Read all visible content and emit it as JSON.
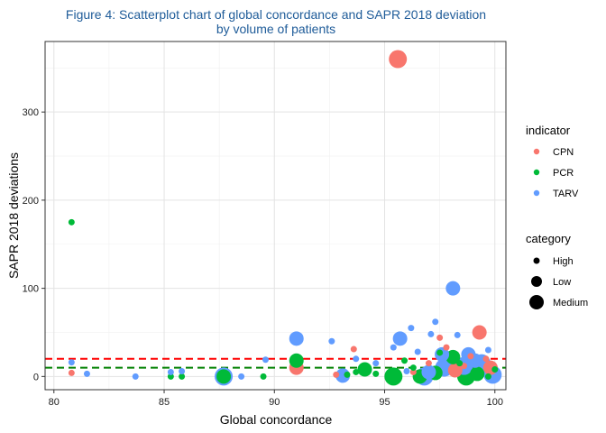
{
  "chart_data": {
    "type": "scatter",
    "title_line1": "Figure 4: Scatterplot chart of global concordance and SAPR 2018 deviation",
    "title_line2": "by volume of patients",
    "xlabel": "Global concordance",
    "ylabel": "SAPR 2018 deviations",
    "xlim": [
      79.6,
      100.5
    ],
    "ylim": [
      -15,
      380
    ],
    "x_ticks": [
      "80",
      "85",
      "90",
      "95",
      "100"
    ],
    "y_ticks": [
      "0",
      "100",
      "200",
      "300"
    ],
    "grid": true,
    "legend_placement": "right",
    "reference_lines": [
      {
        "indicator": "CPN",
        "y": 20,
        "style": "dashed",
        "color": "#ff0000"
      },
      {
        "indicator": "PCR",
        "y": 10,
        "style": "dashed",
        "color": "#008000"
      }
    ],
    "indicator_legend": {
      "title": "indicator",
      "items": [
        {
          "label": "CPN",
          "color": "#F8766D"
        },
        {
          "label": "PCR",
          "color": "#00BA38"
        },
        {
          "label": "TARV",
          "color": "#619CFF"
        }
      ]
    },
    "category_legend": {
      "title": "category",
      "items": [
        {
          "label": "High"
        },
        {
          "label": "Low"
        },
        {
          "label": "Medium"
        }
      ]
    },
    "series": [
      {
        "indicator": "CPN",
        "points": [
          [
            80.8,
            4,
            "High"
          ],
          [
            92.8,
            2,
            "High"
          ],
          [
            93.6,
            31,
            "High"
          ],
          [
            95.6,
            360,
            "Medium"
          ],
          [
            91.0,
            10,
            "Low"
          ],
          [
            97.5,
            44,
            "High"
          ],
          [
            97.8,
            33,
            "High"
          ],
          [
            98.2,
            7,
            "Low"
          ],
          [
            98.9,
            23,
            "High"
          ],
          [
            99.3,
            50,
            "Low"
          ],
          [
            99.8,
            10,
            "Low"
          ],
          [
            96.3,
            5,
            "High"
          ],
          [
            97.0,
            15,
            "High"
          ],
          [
            98.6,
            12,
            "High"
          ],
          [
            99.6,
            20,
            "High"
          ]
        ]
      },
      {
        "indicator": "PCR",
        "points": [
          [
            80.8,
            175,
            "High"
          ],
          [
            85.3,
            0,
            "High"
          ],
          [
            85.8,
            0,
            "High"
          ],
          [
            87.7,
            0,
            "Low"
          ],
          [
            89.5,
            0,
            "High"
          ],
          [
            91.0,
            18,
            "Low"
          ],
          [
            93.3,
            2,
            "High"
          ],
          [
            93.7,
            5,
            "High"
          ],
          [
            94.1,
            8,
            "Low"
          ],
          [
            94.6,
            3,
            "High"
          ],
          [
            95.4,
            0,
            "Medium"
          ],
          [
            95.9,
            18,
            "High"
          ],
          [
            96.3,
            10,
            "High"
          ],
          [
            97.3,
            4,
            "Low"
          ],
          [
            97.5,
            27,
            "High"
          ],
          [
            98.1,
            22,
            "Low"
          ],
          [
            98.7,
            0,
            "Medium"
          ],
          [
            99.2,
            3,
            "Low"
          ],
          [
            99.7,
            0,
            "High"
          ],
          [
            100.0,
            8,
            "High"
          ],
          [
            96.6,
            0,
            "Low"
          ],
          [
            98.4,
            15,
            "High"
          ]
        ]
      },
      {
        "indicator": "TARV",
        "points": [
          [
            80.8,
            16,
            "High"
          ],
          [
            81.5,
            3,
            "High"
          ],
          [
            83.7,
            0,
            "High"
          ],
          [
            85.3,
            5,
            "High"
          ],
          [
            85.8,
            6,
            "High"
          ],
          [
            87.7,
            0,
            "Medium"
          ],
          [
            88.5,
            0,
            "High"
          ],
          [
            89.6,
            19,
            "High"
          ],
          [
            91.0,
            43,
            "Low"
          ],
          [
            92.6,
            40,
            "High"
          ],
          [
            93.1,
            1,
            "Low"
          ],
          [
            93.7,
            20,
            "High"
          ],
          [
            94.6,
            15,
            "High"
          ],
          [
            95.4,
            33,
            "High"
          ],
          [
            95.7,
            43,
            "Low"
          ],
          [
            96.2,
            55,
            "High"
          ],
          [
            96.5,
            28,
            "High"
          ],
          [
            96.8,
            0,
            "Medium"
          ],
          [
            97.1,
            48,
            "High"
          ],
          [
            97.3,
            62,
            "High"
          ],
          [
            97.6,
            25,
            "Low"
          ],
          [
            97.7,
            10,
            "Medium"
          ],
          [
            98.1,
            100,
            "Low"
          ],
          [
            98.3,
            47,
            "High"
          ],
          [
            98.6,
            12,
            "Medium"
          ],
          [
            98.8,
            25,
            "Low"
          ],
          [
            99.1,
            18,
            "Low"
          ],
          [
            99.4,
            15,
            "Medium"
          ],
          [
            99.7,
            30,
            "High"
          ],
          [
            99.9,
            2,
            "Medium"
          ],
          [
            97.0,
            5,
            "Low"
          ],
          [
            96.0,
            6,
            "High"
          ]
        ]
      }
    ]
  }
}
